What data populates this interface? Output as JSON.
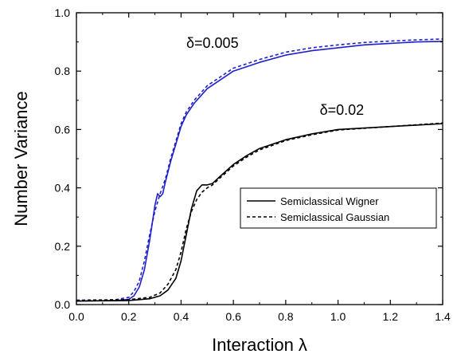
{
  "chart_data": {
    "type": "line",
    "title": "",
    "xlabel": "Interaction λ",
    "ylabel": "Number Variance",
    "xlim": [
      0.0,
      1.4
    ],
    "ylim": [
      0.0,
      1.0
    ],
    "xticks": [
      0.0,
      0.2,
      0.4,
      0.6,
      0.8,
      1.0,
      1.2,
      1.4
    ],
    "yticks": [
      0.0,
      0.2,
      0.4,
      0.6,
      0.8,
      1.0
    ],
    "xtick_labels": [
      "0.0",
      "0.2",
      "0.4",
      "0.6",
      "0.8",
      "1.0",
      "1.2",
      "1.4"
    ],
    "ytick_labels": [
      "0.0",
      "0.2",
      "0.4",
      "0.6",
      "0.8",
      "1.0"
    ],
    "grid": false,
    "legend_position": "center-right",
    "annotations": [
      {
        "text": "δ=0.005",
        "x": 0.42,
        "y": 0.88
      },
      {
        "text": "δ=0.02",
        "x": 0.93,
        "y": 0.65
      }
    ],
    "series": [
      {
        "name": "Semiclassical Wigner",
        "group": "δ=0.005",
        "color": "#1f1fcc",
        "dash": "solid",
        "x": [
          0.0,
          0.1,
          0.15,
          0.2,
          0.22,
          0.24,
          0.26,
          0.28,
          0.3,
          0.31,
          0.32,
          0.33,
          0.34,
          0.36,
          0.38,
          0.4,
          0.42,
          0.45,
          0.5,
          0.55,
          0.6,
          0.7,
          0.8,
          0.9,
          1.0,
          1.1,
          1.2,
          1.3,
          1.4
        ],
        "y": [
          0.012,
          0.013,
          0.014,
          0.018,
          0.03,
          0.06,
          0.12,
          0.22,
          0.34,
          0.38,
          0.37,
          0.38,
          0.42,
          0.49,
          0.55,
          0.61,
          0.65,
          0.69,
          0.74,
          0.77,
          0.8,
          0.83,
          0.855,
          0.87,
          0.88,
          0.89,
          0.895,
          0.9,
          0.902
        ]
      },
      {
        "name": "Semiclassical Gaussian",
        "group": "δ=0.005",
        "color": "#1f1fcc",
        "dash": "dashed",
        "x": [
          0.0,
          0.1,
          0.15,
          0.2,
          0.22,
          0.24,
          0.26,
          0.28,
          0.3,
          0.32,
          0.34,
          0.36,
          0.38,
          0.4,
          0.42,
          0.45,
          0.5,
          0.55,
          0.6,
          0.7,
          0.8,
          0.9,
          1.0,
          1.1,
          1.2,
          1.3,
          1.4
        ],
        "y": [
          0.014,
          0.015,
          0.017,
          0.025,
          0.045,
          0.08,
          0.15,
          0.24,
          0.32,
          0.38,
          0.43,
          0.5,
          0.56,
          0.62,
          0.66,
          0.7,
          0.75,
          0.78,
          0.81,
          0.84,
          0.865,
          0.88,
          0.89,
          0.898,
          0.903,
          0.907,
          0.91
        ]
      },
      {
        "name": "Semiclassical Wigner",
        "group": "δ=0.02",
        "color": "#000000",
        "dash": "solid",
        "x": [
          0.0,
          0.2,
          0.28,
          0.32,
          0.35,
          0.38,
          0.4,
          0.42,
          0.44,
          0.46,
          0.48,
          0.5,
          0.52,
          0.55,
          0.6,
          0.65,
          0.7,
          0.8,
          0.9,
          1.0,
          1.1,
          1.2,
          1.3,
          1.4
        ],
        "y": [
          0.012,
          0.014,
          0.02,
          0.03,
          0.05,
          0.09,
          0.15,
          0.24,
          0.33,
          0.39,
          0.41,
          0.41,
          0.415,
          0.44,
          0.48,
          0.51,
          0.535,
          0.565,
          0.585,
          0.6,
          0.605,
          0.61,
          0.615,
          0.62
        ]
      },
      {
        "name": "Semiclassical Gaussian",
        "group": "δ=0.02",
        "color": "#000000",
        "dash": "dashed",
        "x": [
          0.0,
          0.2,
          0.28,
          0.32,
          0.35,
          0.38,
          0.4,
          0.42,
          0.44,
          0.46,
          0.48,
          0.5,
          0.52,
          0.55,
          0.6,
          0.65,
          0.7,
          0.8,
          0.9,
          1.0,
          1.1,
          1.2,
          1.3,
          1.4
        ],
        "y": [
          0.015,
          0.017,
          0.025,
          0.04,
          0.07,
          0.12,
          0.18,
          0.26,
          0.32,
          0.36,
          0.385,
          0.4,
          0.41,
          0.435,
          0.475,
          0.505,
          0.53,
          0.562,
          0.582,
          0.598,
          0.604,
          0.61,
          0.616,
          0.622
        ]
      }
    ],
    "legend_entries": [
      {
        "label": "Semiclassical Wigner",
        "dash": "solid"
      },
      {
        "label": "Semiclassical Gaussian",
        "dash": "dashed"
      }
    ]
  }
}
